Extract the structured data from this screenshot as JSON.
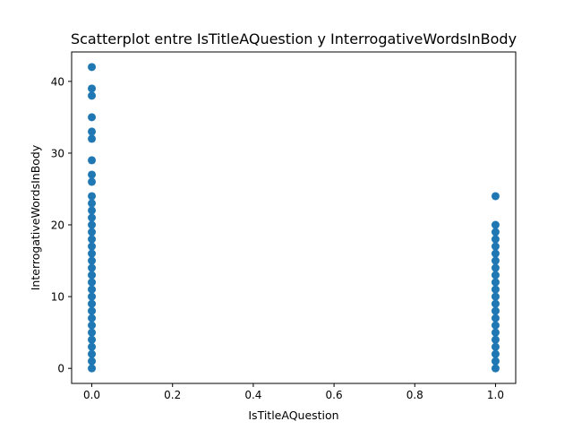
{
  "chart_data": {
    "type": "scatter",
    "title": "Scatterplot entre IsTitleAQuestion y InterrogativeWordsInBody",
    "xlabel": "IsTitleAQuestion",
    "ylabel": "InterrogativeWordsInBody",
    "xlim": [
      -0.05,
      1.05
    ],
    "ylim": [
      -2.1,
      44.1
    ],
    "xticks": [
      0.0,
      0.2,
      0.4,
      0.6,
      0.8,
      1.0
    ],
    "xtick_labels": [
      "0.0",
      "0.2",
      "0.4",
      "0.6",
      "0.8",
      "1.0"
    ],
    "yticks": [
      0,
      10,
      20,
      30,
      40
    ],
    "ytick_labels": [
      "0",
      "10",
      "20",
      "30",
      "40"
    ],
    "grid": false,
    "legend": "none",
    "series": [
      {
        "color": "#1f77b4",
        "points": [
          [
            0,
            0
          ],
          [
            0,
            1
          ],
          [
            0,
            2
          ],
          [
            0,
            3
          ],
          [
            0,
            4
          ],
          [
            0,
            5
          ],
          [
            0,
            6
          ],
          [
            0,
            7
          ],
          [
            0,
            8
          ],
          [
            0,
            9
          ],
          [
            0,
            10
          ],
          [
            0,
            11
          ],
          [
            0,
            12
          ],
          [
            0,
            13
          ],
          [
            0,
            14
          ],
          [
            0,
            15
          ],
          [
            0,
            16
          ],
          [
            0,
            17
          ],
          [
            0,
            18
          ],
          [
            0,
            19
          ],
          [
            0,
            20
          ],
          [
            0,
            21
          ],
          [
            0,
            22
          ],
          [
            0,
            23
          ],
          [
            0,
            24
          ],
          [
            0,
            26
          ],
          [
            0,
            27
          ],
          [
            0,
            29
          ],
          [
            0,
            32
          ],
          [
            0,
            33
          ],
          [
            0,
            35
          ],
          [
            0,
            38
          ],
          [
            0,
            39
          ],
          [
            0,
            42
          ],
          [
            1,
            0
          ],
          [
            1,
            1
          ],
          [
            1,
            2
          ],
          [
            1,
            3
          ],
          [
            1,
            4
          ],
          [
            1,
            5
          ],
          [
            1,
            6
          ],
          [
            1,
            7
          ],
          [
            1,
            8
          ],
          [
            1,
            9
          ],
          [
            1,
            10
          ],
          [
            1,
            11
          ],
          [
            1,
            12
          ],
          [
            1,
            13
          ],
          [
            1,
            14
          ],
          [
            1,
            15
          ],
          [
            1,
            16
          ],
          [
            1,
            17
          ],
          [
            1,
            18
          ],
          [
            1,
            19
          ],
          [
            1,
            20
          ],
          [
            1,
            24
          ]
        ]
      }
    ]
  }
}
